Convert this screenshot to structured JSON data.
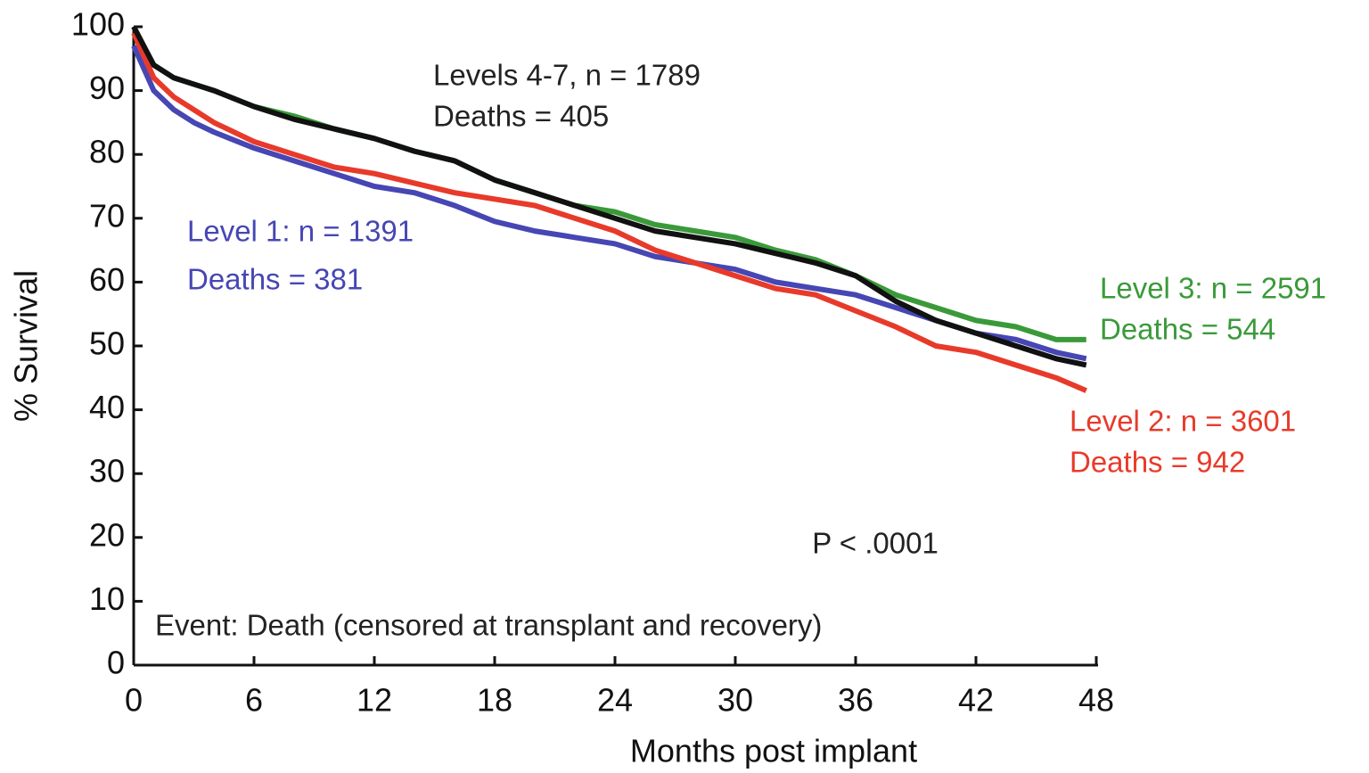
{
  "chart_data": {
    "type": "line",
    "x_label": "Months post implant",
    "y_label": "% Survival",
    "x": [
      0,
      1,
      2,
      3,
      4,
      6,
      8,
      10,
      12,
      14,
      16,
      18,
      20,
      22,
      24,
      26,
      28,
      30,
      32,
      34,
      36,
      38,
      40,
      42,
      44,
      46,
      47.5
    ],
    "series": [
      {
        "name": "Level 3",
        "color": "#3a9a3a",
        "values": [
          100,
          94,
          92,
          91,
          90,
          87.5,
          86,
          84,
          82.5,
          80.5,
          79,
          76,
          74,
          72,
          71,
          69,
          68,
          67,
          65,
          63.5,
          61,
          58,
          56,
          54,
          53,
          51,
          51
        ]
      },
      {
        "name": "Level 1",
        "color": "#4646b4",
        "values": [
          97,
          90,
          87,
          85,
          83.5,
          81,
          79,
          77,
          75,
          74,
          72,
          69.5,
          68,
          67,
          66,
          64,
          63,
          62,
          60,
          59,
          58,
          56,
          54,
          52,
          51,
          49,
          48
        ]
      },
      {
        "name": "Level 2",
        "color": "#e83a2a",
        "values": [
          99,
          92,
          89,
          87,
          85,
          82,
          80,
          78,
          77,
          75.5,
          74,
          73,
          72,
          70,
          68,
          65,
          63,
          61,
          59,
          58,
          55.5,
          53,
          50,
          49,
          47,
          45,
          43
        ]
      },
      {
        "name": "Levels 4-7",
        "color": "#111111",
        "values": [
          100,
          94,
          92,
          91,
          90,
          87.5,
          85.5,
          84,
          82.5,
          80.5,
          79,
          76,
          74,
          72,
          70,
          68,
          67,
          66,
          64.5,
          63,
          61,
          57,
          54,
          52,
          50,
          48,
          47
        ]
      }
    ],
    "annotations": [
      {
        "text": "Levels 4-7, n = 1789",
        "color": "#222222"
      },
      {
        "text": "Deaths = 405",
        "color": "#222222"
      },
      {
        "text": "Level 1: n = 1391",
        "color": "#4646b4"
      },
      {
        "text": "Deaths = 381",
        "color": "#4646b4"
      },
      {
        "text": "Level 3: n = 2591",
        "color": "#3a9a3a"
      },
      {
        "text": "Deaths = 544",
        "color": "#3a9a3a"
      },
      {
        "text": "Level 2: n = 3601",
        "color": "#e83a2a"
      },
      {
        "text": "Deaths = 942",
        "color": "#e83a2a"
      },
      {
        "text": "P < .0001",
        "color": "#222222"
      },
      {
        "text": "Event: Death (censored at transplant and recovery)",
        "color": "#222222"
      }
    ],
    "xlim": [
      0,
      48
    ],
    "xticks": [
      0,
      6,
      12,
      18,
      24,
      30,
      36,
      42,
      48
    ],
    "ylim": [
      0,
      100
    ],
    "yticks": [
      0,
      10,
      20,
      30,
      40,
      50,
      60,
      70,
      80,
      90,
      100
    ],
    "grid": false
  }
}
